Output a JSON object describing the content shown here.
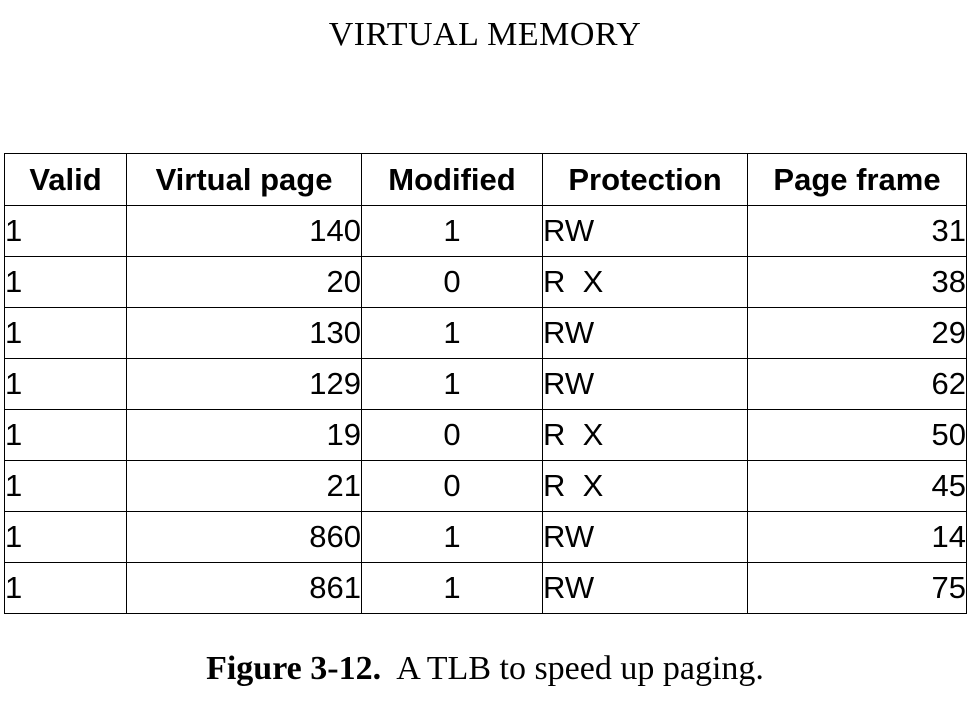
{
  "running_head": "VIRTUAL MEMORY",
  "table": {
    "headers": [
      "Valid",
      "Virtual page",
      "Modified",
      "Protection",
      "Page frame"
    ],
    "rows": [
      [
        "1",
        "140",
        "1",
        "RW",
        "31"
      ],
      [
        "1",
        "20",
        "0",
        "R  X",
        "38"
      ],
      [
        "1",
        "130",
        "1",
        "RW",
        "29"
      ],
      [
        "1",
        "129",
        "1",
        "RW",
        "62"
      ],
      [
        "1",
        "19",
        "0",
        "R  X",
        "50"
      ],
      [
        "1",
        "21",
        "0",
        "R  X",
        "45"
      ],
      [
        "1",
        "860",
        "1",
        "RW",
        "14"
      ],
      [
        "1",
        "861",
        "1",
        "RW",
        "75"
      ]
    ]
  },
  "caption": {
    "label": "Figure 3-12.",
    "text": "A TLB to speed up paging."
  }
}
